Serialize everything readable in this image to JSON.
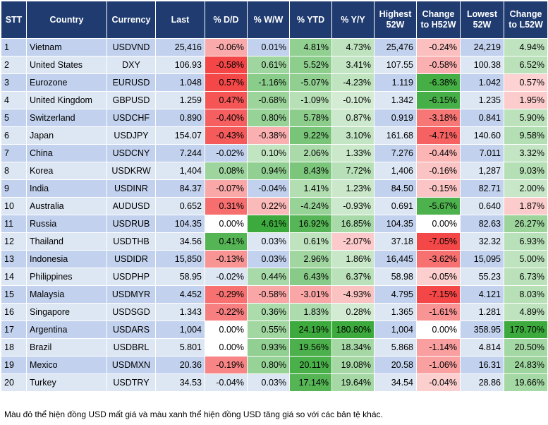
{
  "table": {
    "headers": [
      "STT",
      "Country",
      "Currency",
      "Last",
      "% D/D",
      "% W/W",
      "% YTD",
      "% Y/Y",
      "Highest 52W",
      "Change to H52W",
      "Lowest 52W",
      "Change to L52W"
    ],
    "rows": [
      [
        "1",
        "Vietnam",
        "USDVND",
        "25,416",
        "-0.06%",
        "0.01%",
        "4.81%",
        "4.73%",
        "25,476",
        "-0.24%",
        "24,219",
        "4.94%"
      ],
      [
        "2",
        "United States",
        "DXY",
        "106.93",
        "-0.58%",
        "0.61%",
        "5.52%",
        "3.41%",
        "107.55",
        "-0.58%",
        "100.38",
        "6.52%"
      ],
      [
        "3",
        "Eurozone",
        "EURUSD",
        "1.048",
        "0.57%",
        "-1.16%",
        "-5.07%",
        "-4.23%",
        "1.119",
        "-6.38%",
        "1.042",
        "0.57%"
      ],
      [
        "4",
        "United Kingdom",
        "GBPUSD",
        "1.259",
        "0.47%",
        "-0.68%",
        "-1.09%",
        "-0.10%",
        "1.342",
        "-6.15%",
        "1.235",
        "1.95%"
      ],
      [
        "5",
        "Switzerland",
        "USDCHF",
        "0.890",
        "-0.40%",
        "0.80%",
        "5.78%",
        "0.87%",
        "0.919",
        "-3.18%",
        "0.841",
        "5.90%"
      ],
      [
        "6",
        "Japan",
        "USDJPY",
        "154.07",
        "-0.43%",
        "-0.38%",
        "9.22%",
        "3.10%",
        "161.68",
        "-4.71%",
        "140.60",
        "9.58%"
      ],
      [
        "7",
        "China",
        "USDCNY",
        "7.244",
        "-0.02%",
        "0.10%",
        "2.06%",
        "1.33%",
        "7.276",
        "-0.44%",
        "7.011",
        "3.32%"
      ],
      [
        "8",
        "Korea",
        "USDKRW",
        "1,404",
        "0.08%",
        "0.94%",
        "8.43%",
        "7.72%",
        "1,406",
        "-0.16%",
        "1,287",
        "9.03%"
      ],
      [
        "9",
        "India",
        "USDINR",
        "84.37",
        "-0.07%",
        "-0.04%",
        "1.41%",
        "1.23%",
        "84.50",
        "-0.15%",
        "82.71",
        "2.00%"
      ],
      [
        "10",
        "Australia",
        "AUDUSD",
        "0.652",
        "0.31%",
        "0.22%",
        "-4.24%",
        "-0.93%",
        "0.691",
        "-5.67%",
        "0.640",
        "1.87%"
      ],
      [
        "11",
        "Russia",
        "USDRUB",
        "104.35",
        "0.00%",
        "4.61%",
        "16.92%",
        "16.85%",
        "104.35",
        "0.00%",
        "82.63",
        "26.27%"
      ],
      [
        "12",
        "Thailand",
        "USDTHB",
        "34.56",
        "0.41%",
        "0.03%",
        "0.61%",
        "-2.07%",
        "37.18",
        "-7.05%",
        "32.32",
        "6.93%"
      ],
      [
        "13",
        "Indonesia",
        "USDIDR",
        "15,850",
        "-0.13%",
        "0.03%",
        "2.96%",
        "1.86%",
        "16,445",
        "-3.62%",
        "15,095",
        "5.00%"
      ],
      [
        "14",
        "Philippines",
        "USDPHP",
        "58.95",
        "-0.02%",
        "0.44%",
        "6.43%",
        "6.37%",
        "58.98",
        "-0.05%",
        "55.23",
        "6.73%"
      ],
      [
        "15",
        "Malaysia",
        "USDMYR",
        "4.452",
        "-0.29%",
        "-0.58%",
        "-3.01%",
        "-4.93%",
        "4.795",
        "-7.15%",
        "4.121",
        "8.03%"
      ],
      [
        "16",
        "Singapore",
        "USDSGD",
        "1.343",
        "-0.22%",
        "0.36%",
        "1.83%",
        "0.28%",
        "1.365",
        "-1.61%",
        "1.281",
        "4.89%"
      ],
      [
        "17",
        "Argentina",
        "USDARS",
        "1,004",
        "0.00%",
        "0.55%",
        "24.19%",
        "180.80%",
        "1,004",
        "0.00%",
        "358.95",
        "179.70%"
      ],
      [
        "18",
        "Brazil",
        "USDBRL",
        "5.801",
        "0.00%",
        "0.93%",
        "19.56%",
        "18.34%",
        "5.868",
        "-1.14%",
        "4.814",
        "20.50%"
      ],
      [
        "19",
        "Mexico",
        "USDMXN",
        "20.36",
        "-0.19%",
        "0.80%",
        "20.11%",
        "19.08%",
        "20.58",
        "-1.06%",
        "16.31",
        "24.83%"
      ],
      [
        "20",
        "Turkey",
        "USDTRY",
        "34.53",
        "-0.04%",
        "0.03%",
        "17.14%",
        "19.64%",
        "34.54",
        "-0.04%",
        "28.86",
        "19.66%"
      ]
    ]
  },
  "note": "Màu đỏ thể hiện đồng USD mất giá và màu xanh thể hiện đồng USD tăng giá so với các bản tệ khác."
}
